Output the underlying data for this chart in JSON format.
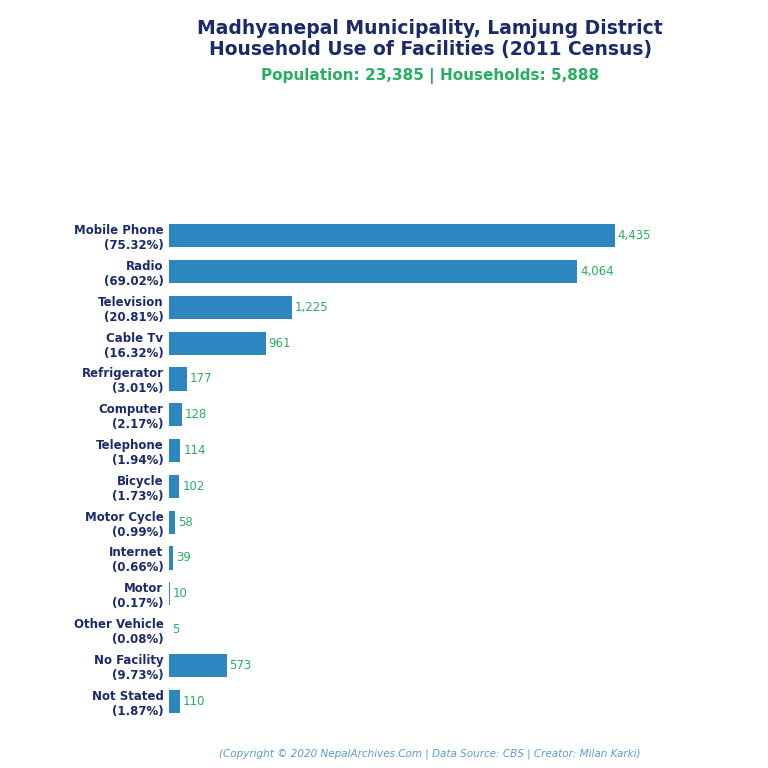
{
  "title_line1": "Madhyanepal Municipality, Lamjung District",
  "title_line2": "Household Use of Facilities (2011 Census)",
  "subtitle": "Population: 23,385 | Households: 5,888",
  "categories": [
    "Mobile Phone\n(75.32%)",
    "Radio\n(69.02%)",
    "Television\n(20.81%)",
    "Cable Tv\n(16.32%)",
    "Refrigerator\n(3.01%)",
    "Computer\n(2.17%)",
    "Telephone\n(1.94%)",
    "Bicycle\n(1.73%)",
    "Motor Cycle\n(0.99%)",
    "Internet\n(0.66%)",
    "Motor\n(0.17%)",
    "Other Vehicle\n(0.08%)",
    "No Facility\n(9.73%)",
    "Not Stated\n(1.87%)"
  ],
  "values": [
    4435,
    4064,
    1225,
    961,
    177,
    128,
    114,
    102,
    58,
    39,
    10,
    5,
    573,
    110
  ],
  "bar_color": "#2E86C1",
  "value_color": "#27AE60",
  "title_color": "#1B2A6B",
  "subtitle_color": "#27AE60",
  "footer_color": "#5B9BD5",
  "footer_text": "(Copyright © 2020 NepalArchives.Com | Data Source: CBS | Creator: Milan Karki)",
  "background_color": "#ffffff",
  "title_fontsize": 13.5,
  "subtitle_fontsize": 11,
  "label_fontsize": 8.5,
  "value_fontsize": 8.5,
  "footer_fontsize": 7.5
}
